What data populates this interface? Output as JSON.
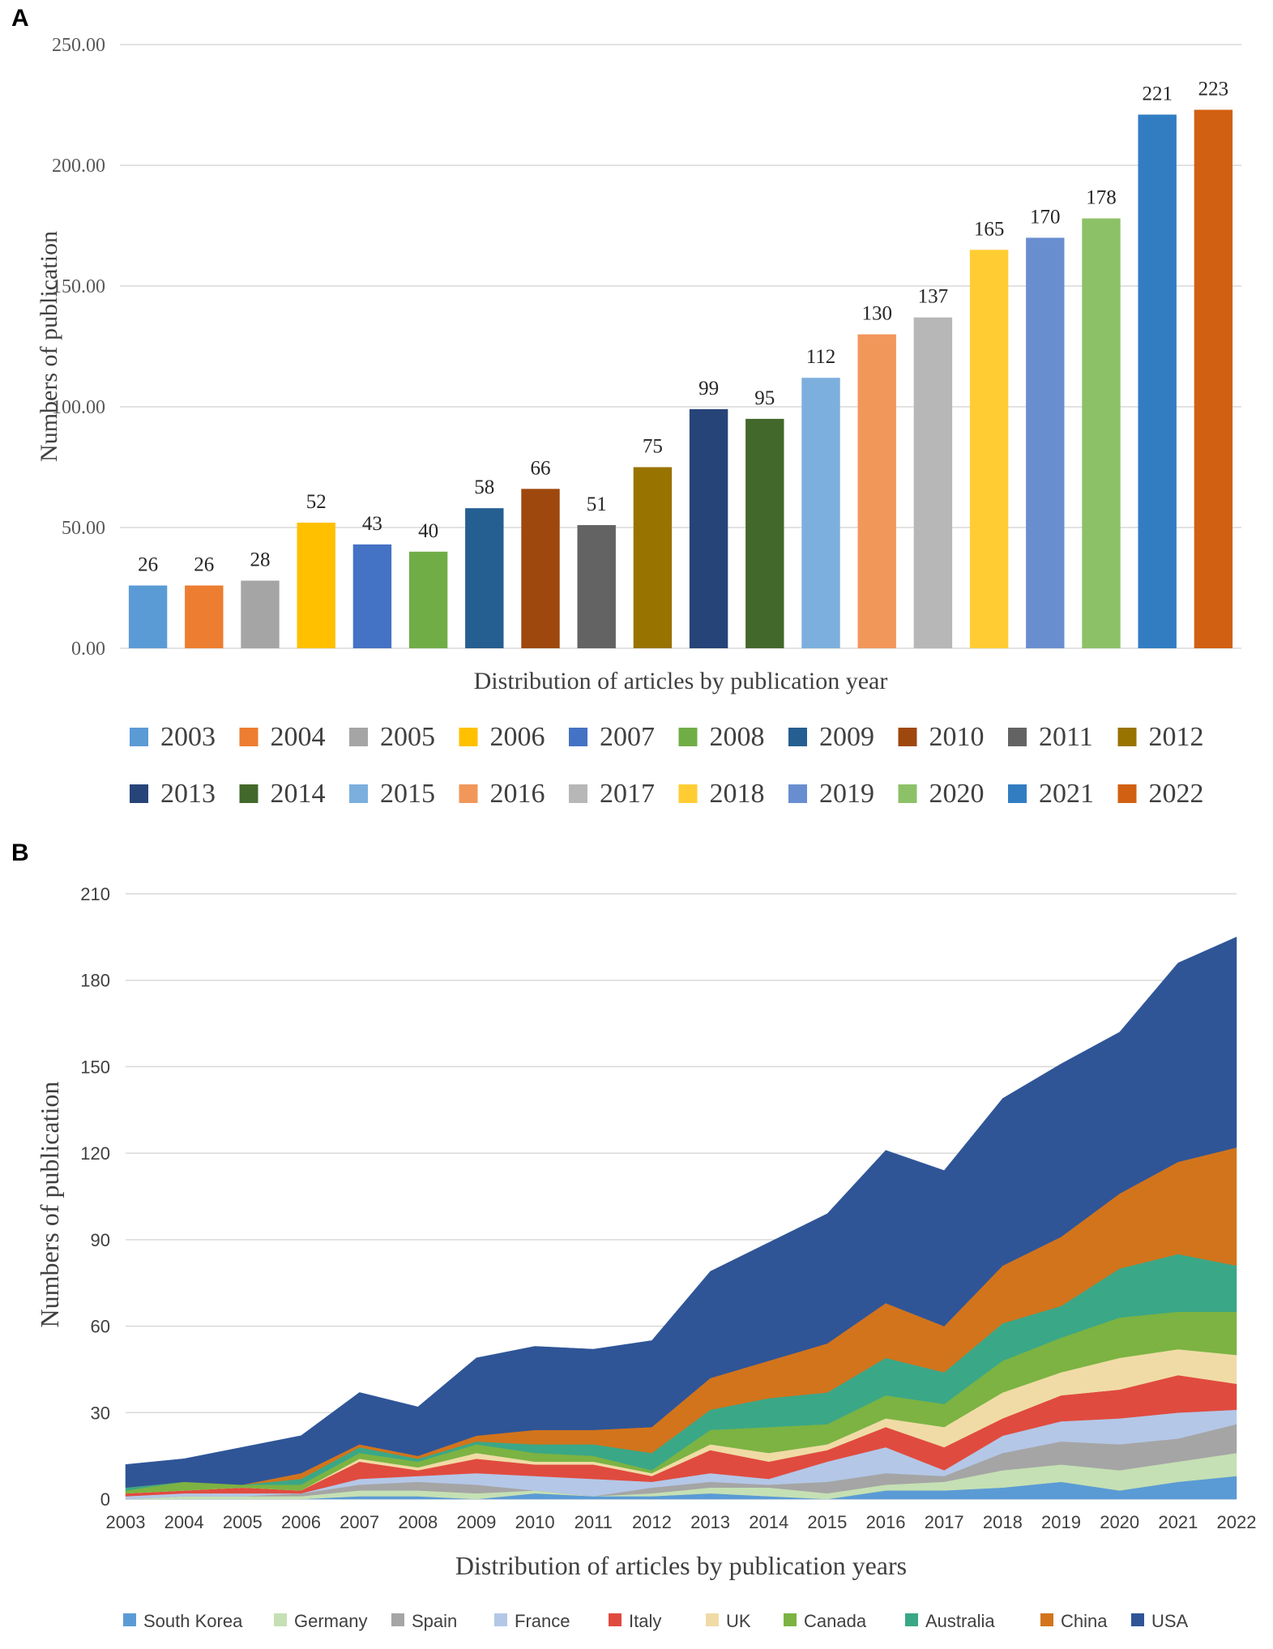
{
  "chart_data": [
    {
      "panel": "A",
      "type": "bar",
      "title": "",
      "xlabel": "Distribution of articles by publication year",
      "ylabel": "Numbers of publication",
      "ylim": [
        0,
        250
      ],
      "yticks": [
        "0.00",
        "50.00",
        "100.00",
        "150.00",
        "200.00",
        "250.00"
      ],
      "ytick_values": [
        0,
        50,
        100,
        150,
        200,
        250
      ],
      "grid": true,
      "legend_position": "bottom",
      "categories": [
        "2003",
        "2004",
        "2005",
        "2006",
        "2007",
        "2008",
        "2009",
        "2010",
        "2011",
        "2012",
        "2013",
        "2014",
        "2015",
        "2016",
        "2017",
        "2018",
        "2019",
        "2020",
        "2021",
        "2022"
      ],
      "values": [
        26,
        26,
        28,
        52,
        43,
        40,
        58,
        66,
        51,
        75,
        99,
        95,
        112,
        130,
        137,
        165,
        170,
        178,
        221,
        223
      ],
      "colors": [
        "#5b9bd5",
        "#ed7d31",
        "#a5a5a5",
        "#ffc000",
        "#4472c4",
        "#70ad47",
        "#255e91",
        "#9e480e",
        "#636363",
        "#997300",
        "#264478",
        "#43682b",
        "#7cafdd",
        "#f1975a",
        "#b7b7b7",
        "#ffcd33",
        "#698ed0",
        "#8cc168",
        "#327dc2",
        "#d26012"
      ]
    },
    {
      "panel": "B",
      "type": "area",
      "stacked": true,
      "title": "",
      "xlabel": "Distribution of articles by publication years",
      "ylabel": "Numbers of  publication",
      "ylim": [
        0,
        210
      ],
      "yticks": [
        "0",
        "30",
        "60",
        "90",
        "120",
        "150",
        "180",
        "210"
      ],
      "ytick_values": [
        0,
        30,
        60,
        90,
        120,
        150,
        180,
        210
      ],
      "grid": true,
      "legend_position": "bottom",
      "x": [
        "2003",
        "2004",
        "2005",
        "2006",
        "2007",
        "2008",
        "2009",
        "2010",
        "2011",
        "2012",
        "2013",
        "2014",
        "2015",
        "2016",
        "2017",
        "2018",
        "2019",
        "2020",
        "2021",
        "2022"
      ],
      "series": [
        {
          "name": "South Korea",
          "color": "#5b9bd5",
          "values": [
            0,
            0,
            0,
            0,
            1,
            1,
            0,
            2,
            1,
            1,
            2,
            1,
            0,
            3,
            3,
            4,
            6,
            3,
            6,
            8
          ]
        },
        {
          "name": "Germany",
          "color": "#c5e0b4",
          "values": [
            0,
            1,
            1,
            1,
            2,
            2,
            2,
            1,
            0,
            1,
            2,
            3,
            2,
            2,
            3,
            6,
            6,
            7,
            7,
            8
          ]
        },
        {
          "name": "Spain",
          "color": "#a5a5a5",
          "values": [
            0,
            0,
            0,
            1,
            2,
            3,
            3,
            0,
            0,
            2,
            2,
            1,
            4,
            4,
            2,
            6,
            8,
            9,
            8,
            10
          ]
        },
        {
          "name": "France",
          "color": "#b4c7e7",
          "values": [
            1,
            1,
            1,
            0,
            2,
            2,
            4,
            5,
            6,
            2,
            3,
            2,
            7,
            9,
            2,
            6,
            7,
            9,
            9,
            5
          ]
        },
        {
          "name": "Italy",
          "color": "#e04b3f",
          "values": [
            1,
            1,
            2,
            1,
            6,
            2,
            5,
            4,
            5,
            2,
            8,
            6,
            4,
            7,
            8,
            6,
            9,
            10,
            13,
            9
          ]
        },
        {
          "name": "UK",
          "color": "#f0dba6",
          "values": [
            0,
            0,
            0,
            0,
            1,
            1,
            2,
            1,
            1,
            1,
            2,
            3,
            2,
            3,
            7,
            9,
            8,
            11,
            9,
            10
          ]
        },
        {
          "name": "Canada",
          "color": "#7cb342",
          "values": [
            1,
            3,
            1,
            2,
            2,
            2,
            3,
            3,
            2,
            1,
            5,
            9,
            7,
            8,
            8,
            11,
            12,
            14,
            13,
            15
          ]
        },
        {
          "name": "Australia",
          "color": "#3aa787",
          "values": [
            1,
            0,
            0,
            2,
            2,
            1,
            1,
            3,
            4,
            6,
            7,
            10,
            11,
            13,
            11,
            13,
            11,
            17,
            20,
            16
          ]
        },
        {
          "name": "China",
          "color": "#d2741c",
          "values": [
            0,
            0,
            0,
            2,
            1,
            1,
            2,
            5,
            5,
            9,
            11,
            13,
            17,
            19,
            16,
            20,
            24,
            26,
            32,
            41
          ]
        },
        {
          "name": "USA",
          "color": "#2f5597",
          "values": [
            8,
            8,
            13,
            13,
            18,
            17,
            27,
            29,
            28,
            30,
            37,
            41,
            45,
            53,
            54,
            58,
            60,
            56,
            69,
            73
          ]
        }
      ]
    }
  ]
}
